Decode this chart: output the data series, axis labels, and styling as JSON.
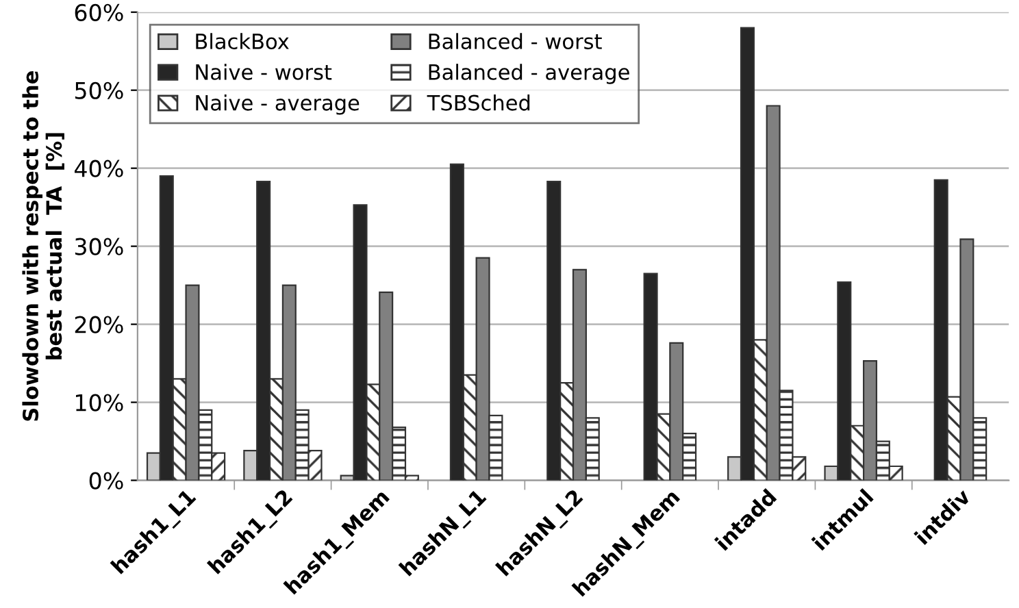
{
  "chart_data": {
    "type": "bar",
    "ylabel": "Slowdown with respect to the\nbest actual  TA  [%]",
    "categories": [
      "hash1_L1",
      "hash1_L2",
      "hash1_Mem",
      "hashN_L1",
      "hashN_L2",
      "hashN_Mem",
      "intadd",
      "intmul",
      "intdiv"
    ],
    "series": [
      {
        "name": "BlackBox",
        "color": "#c8c8c8",
        "values": [
          3.5,
          3.8,
          0.6,
          null,
          null,
          null,
          3,
          1.8,
          null
        ]
      },
      {
        "name": "Naive - worst",
        "color": "#262626",
        "values": [
          39,
          38.3,
          35.3,
          40.5,
          38.3,
          26.5,
          58,
          25.4,
          38.5
        ]
      },
      {
        "name": "Naive - average",
        "color": "#333333",
        "values": [
          13,
          13,
          12.3,
          13.5,
          12.5,
          8.5,
          18,
          7,
          10.7
        ]
      },
      {
        "name": "Balanced - worst",
        "color": "#808080",
        "values": [
          25,
          25,
          24.1,
          28.5,
          27,
          17.6,
          48,
          15.3,
          30.9
        ]
      },
      {
        "name": "Balanced - average",
        "color": "#333333",
        "values": [
          9,
          9,
          6.8,
          8.3,
          8,
          6,
          11.5,
          5,
          8
        ]
      },
      {
        "name": "TSBSched",
        "color": "#333333",
        "values": [
          3.5,
          3.8,
          0.6,
          null,
          null,
          null,
          3,
          1.8,
          null
        ]
      }
    ],
    "ylim": [
      0,
      60
    ],
    "yticks": [
      {
        "value": 0,
        "label": "0%"
      },
      {
        "value": 10,
        "label": "10%"
      },
      {
        "value": 20,
        "label": "20%"
      },
      {
        "value": 30,
        "label": "30%"
      },
      {
        "value": 40,
        "label": "40%"
      },
      {
        "value": 50,
        "label": "50%"
      },
      {
        "value": 60,
        "label": "60%"
      }
    ],
    "grid": "y",
    "legend": "top left"
  }
}
